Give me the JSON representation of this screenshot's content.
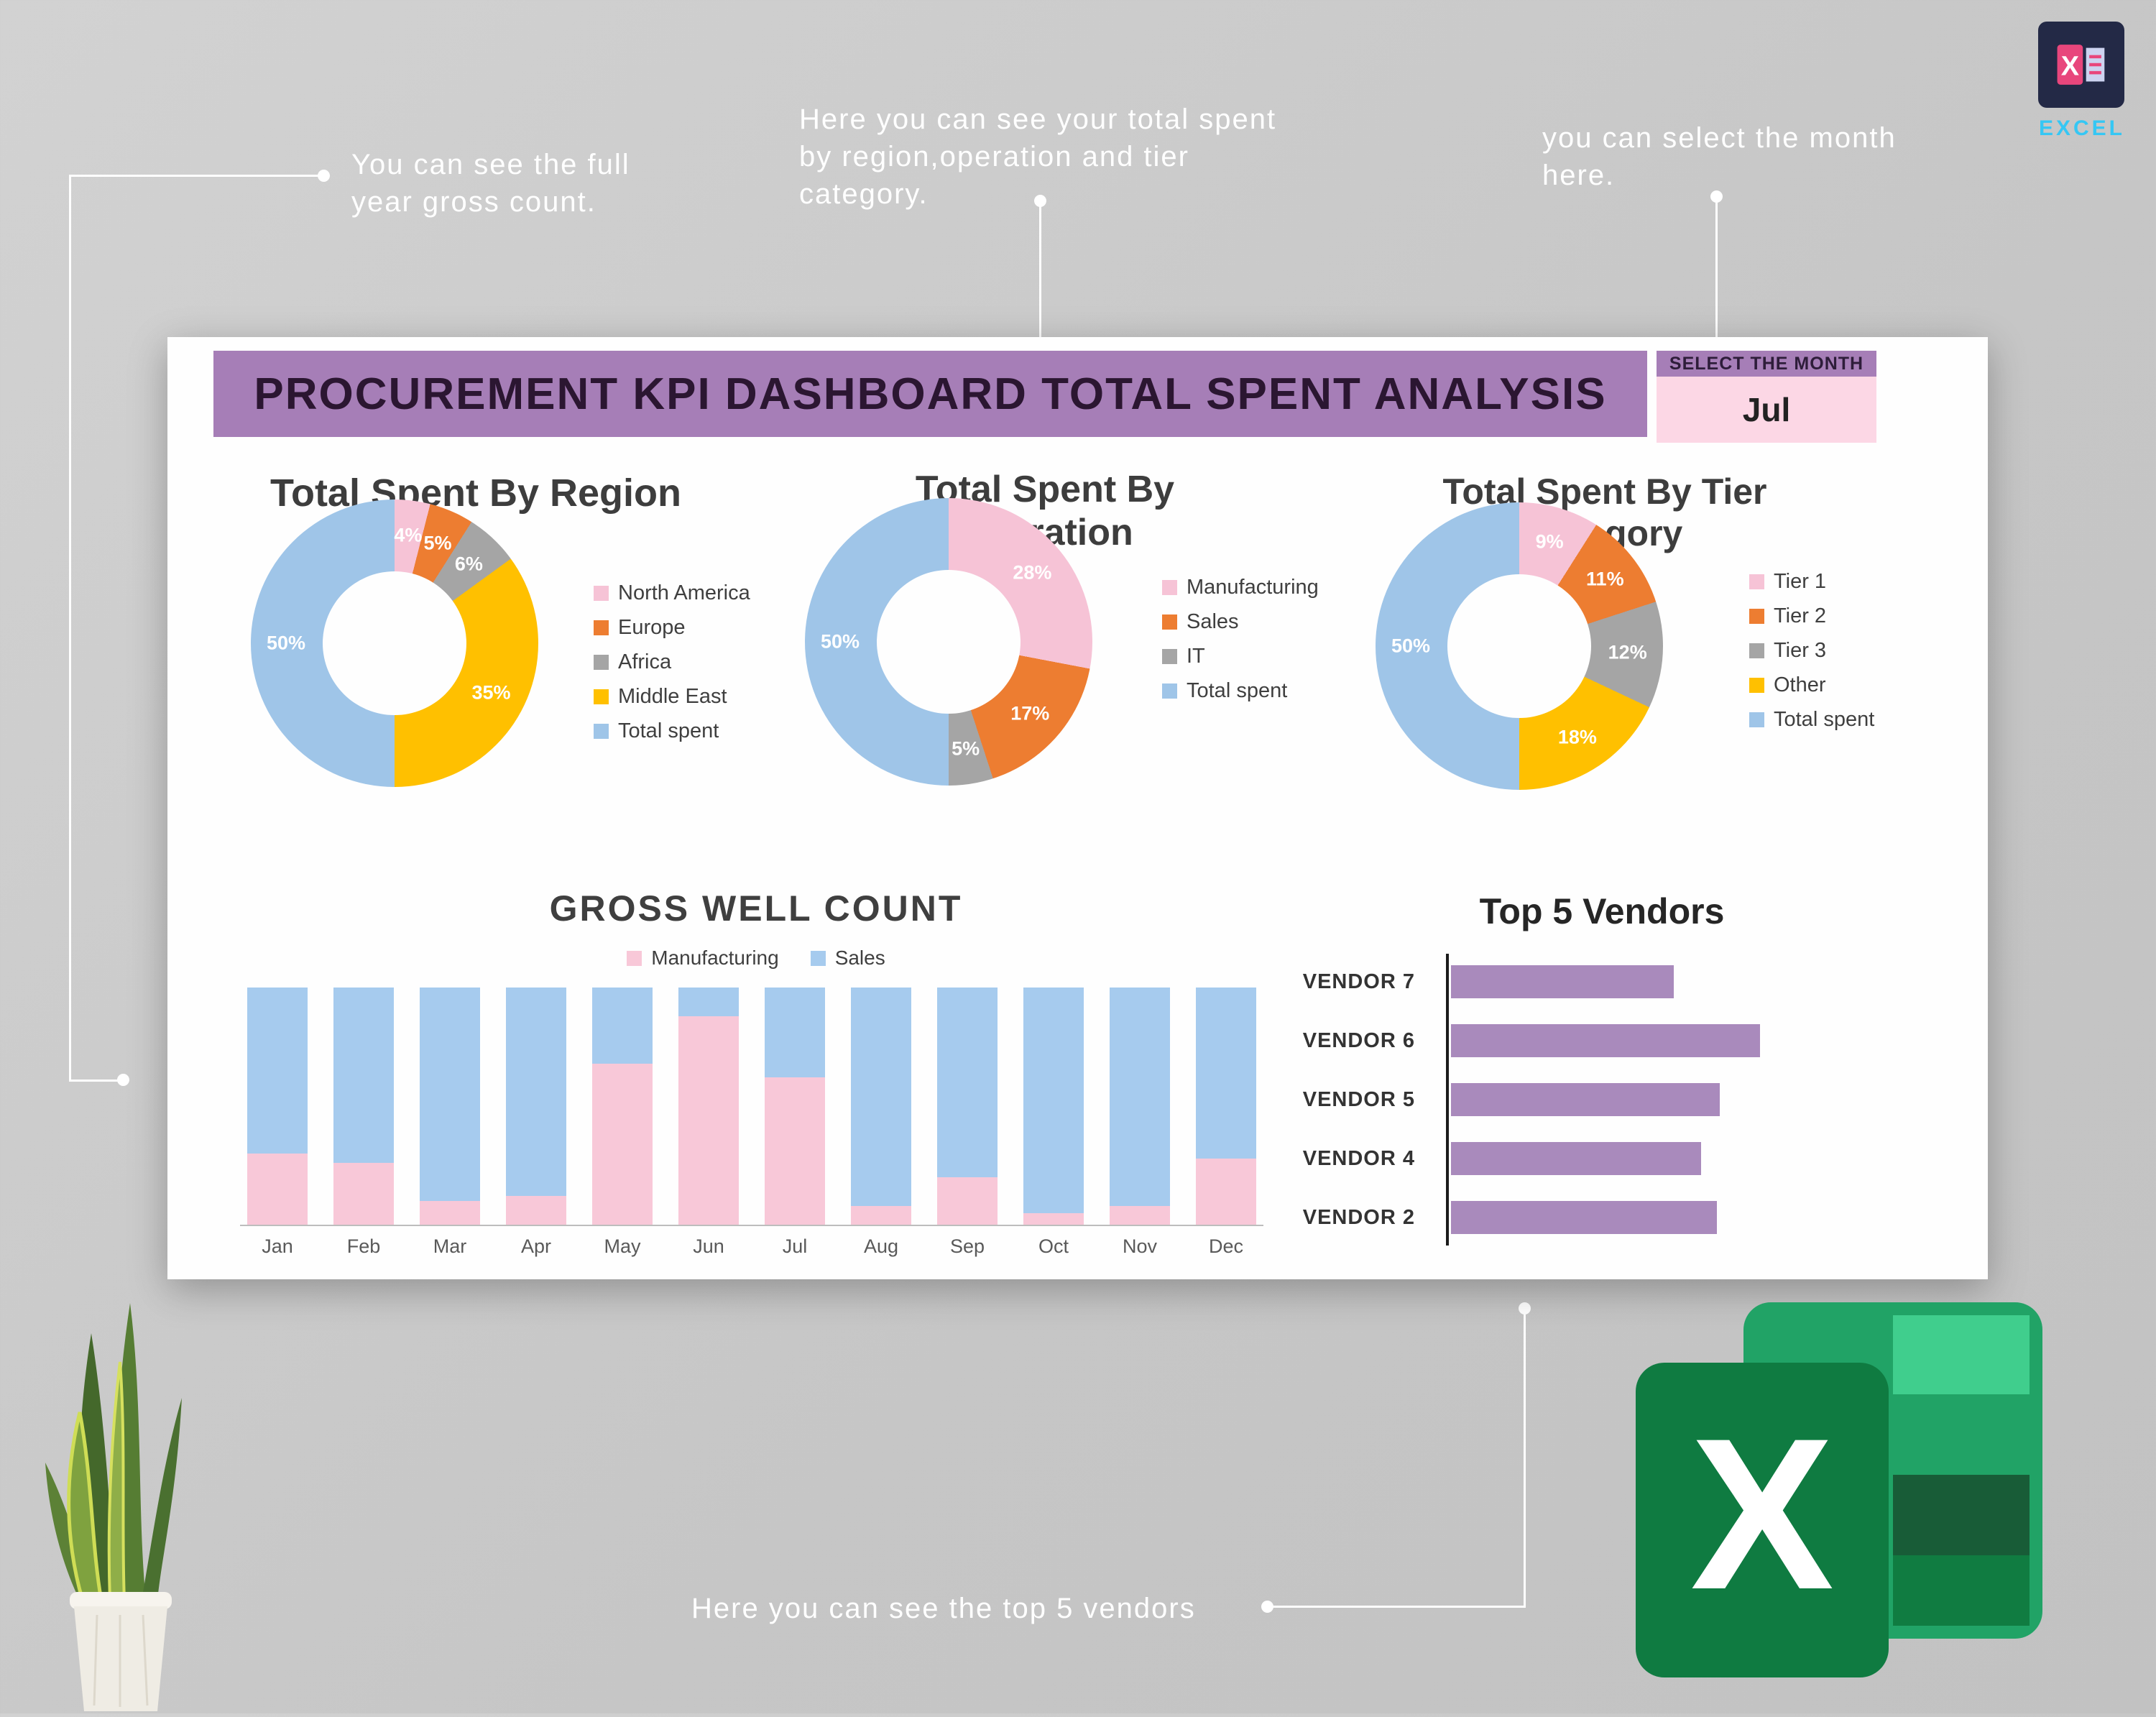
{
  "annotations": {
    "gross_count": {
      "lines": [
        "You can see the full",
        "year gross count."
      ]
    },
    "total_spent": {
      "lines": [
        "Here you can see your total spent",
        "by region,operation and tier",
        "category."
      ]
    },
    "month_select": {
      "lines": [
        "you can select the month",
        "here."
      ]
    },
    "vendors": {
      "lines": [
        "Here you can see the top 5 vendors"
      ]
    }
  },
  "badges": {
    "small_excel": {
      "label": "EXCEL",
      "letter": "X"
    },
    "big_excel": {
      "letter": "X"
    }
  },
  "dashboard": {
    "title": "PROCUREMENT KPI DASHBOARD TOTAL SPENT ANALYSIS",
    "month_selector": {
      "label": "SELECT THE MONTH",
      "value": "Jul"
    }
  },
  "colors": {
    "header_purple": "#a67eb7",
    "month_pink": "#fcd7e5",
    "pink": "#f6c3d6",
    "orange": "#ed7d31",
    "gray": "#a5a5a5",
    "yellow": "#ffc000",
    "blue": "#9fc5e8",
    "vendor_purple": "#a98abc"
  },
  "chart_data": [
    {
      "id": "region",
      "type": "pie",
      "title": "Total Spent By Region",
      "labels": [
        "North America",
        "Europe",
        "Africa",
        "Middle East",
        "Total spent"
      ],
      "values": [
        4,
        5,
        6,
        35,
        50
      ],
      "colors": [
        "#f6c3d6",
        "#ed7d31",
        "#a5a5a5",
        "#ffc000",
        "#9fc5e8"
      ],
      "legend_position": "right"
    },
    {
      "id": "operation",
      "type": "pie",
      "title": "Total Spent By Operation",
      "labels": [
        "Manufacturing",
        "Sales",
        "IT",
        "Total spent"
      ],
      "values": [
        28,
        17,
        5,
        50
      ],
      "colors": [
        "#f6c3d6",
        "#ed7d31",
        "#a5a5a5",
        "#9fc5e8"
      ],
      "legend_position": "right"
    },
    {
      "id": "tier",
      "type": "pie",
      "title": "Total Spent By Tier Category",
      "labels": [
        "Tier 1",
        "Tier 2",
        "Tier 3",
        "Other",
        "Total spent"
      ],
      "values": [
        9,
        11,
        12,
        18,
        50
      ],
      "colors": [
        "#f6c3d6",
        "#ed7d31",
        "#a5a5a5",
        "#ffc000",
        "#9fc5e8"
      ],
      "legend_position": "right"
    },
    {
      "id": "gross",
      "type": "bar",
      "stacked": true,
      "title": "GROSS WELL COUNT",
      "categories": [
        "Jan",
        "Feb",
        "Mar",
        "Apr",
        "May",
        "Jun",
        "Jul",
        "Aug",
        "Sep",
        "Oct",
        "Nov",
        "Dec"
      ],
      "series": [
        {
          "name": "Manufacturing",
          "color": "#f8c8d8",
          "values": [
            30,
            26,
            10,
            12,
            68,
            88,
            62,
            8,
            20,
            5,
            8,
            28
          ]
        },
        {
          "name": "Sales",
          "color": "#a6cbee",
          "values": [
            70,
            74,
            90,
            88,
            32,
            12,
            38,
            92,
            80,
            95,
            92,
            72
          ]
        }
      ],
      "ylim": [
        0,
        100
      ]
    },
    {
      "id": "vendors",
      "type": "bar",
      "orientation": "horizontal",
      "title": "Top 5 Vendors",
      "categories": [
        "VENDOR 7",
        "VENDOR 6",
        "VENDOR 5",
        "VENDOR 4",
        "VENDOR 2"
      ],
      "values": [
        72,
        100,
        87,
        81,
        86
      ],
      "color": "#a98abc"
    }
  ]
}
